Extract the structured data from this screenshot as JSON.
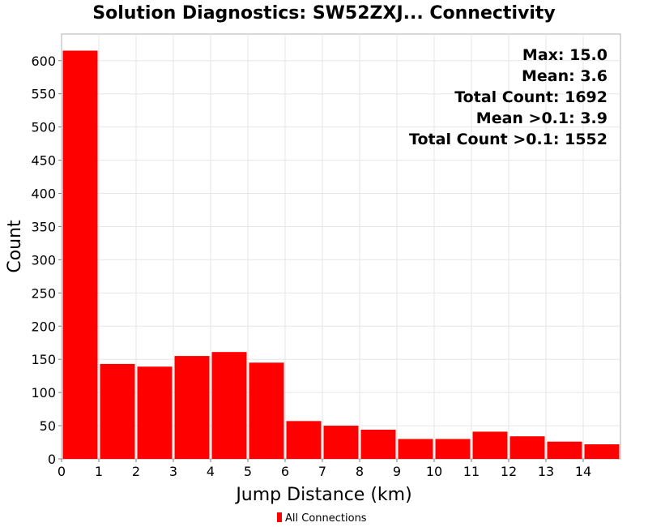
{
  "chart_data": {
    "type": "bar",
    "title": "Solution Diagnostics: SW52ZXJ... Connectivity",
    "xlabel": "Jump Distance (km)",
    "ylabel": "Count",
    "xlim": [
      0,
      15
    ],
    "ylim": [
      0,
      640
    ],
    "xticks": [
      "0",
      "1",
      "2",
      "3",
      "4",
      "5",
      "6",
      "7",
      "8",
      "9",
      "10",
      "11",
      "12",
      "13",
      "14"
    ],
    "yticks": [
      "0",
      "50",
      "100",
      "150",
      "200",
      "250",
      "300",
      "350",
      "400",
      "450",
      "500",
      "550",
      "600"
    ],
    "bin_edges": [
      0,
      1,
      2,
      3,
      4,
      5,
      6,
      7,
      8,
      9,
      10,
      11,
      12,
      13,
      14,
      15
    ],
    "series": [
      {
        "name": "All Connections",
        "color": "#ff0000",
        "values": [
          615,
          143,
          139,
          155,
          161,
          145,
          57,
          50,
          44,
          30,
          30,
          41,
          34,
          26,
          22
        ]
      }
    ],
    "stats": [
      "Max: 15.0",
      "Mean: 3.6",
      "Total Count: 1692",
      "Mean >0.1: 3.9",
      "Total Count >0.1: 1552"
    ],
    "grid": true,
    "legend_position": "bottom-center"
  }
}
